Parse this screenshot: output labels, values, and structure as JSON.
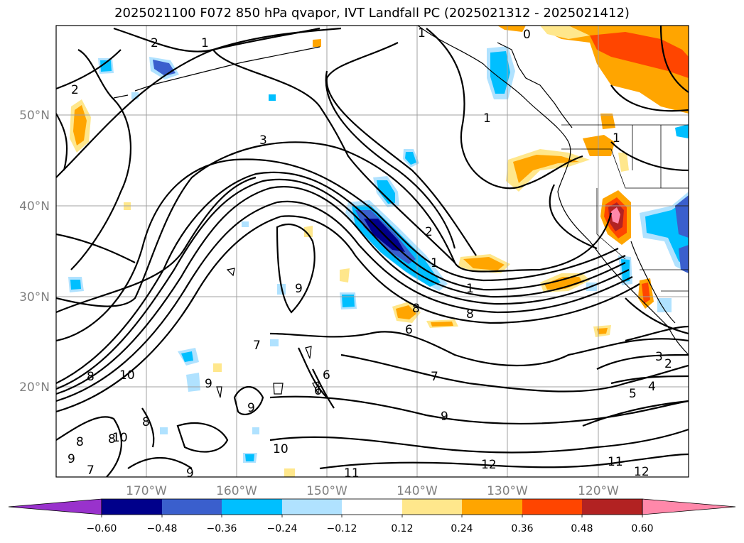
{
  "title": "2025021100 F072 850 hPa qvapor, IVT Landfall PC (2025021312 - 2025021412)",
  "map": {
    "lat_labels": [
      "50°N",
      "40°N",
      "30°N",
      "20°N"
    ],
    "lon_labels": [
      "170°W",
      "160°W",
      "150°W",
      "140°W",
      "130°W",
      "120°W"
    ],
    "contour_labels": [
      "2",
      "1",
      "2",
      "1",
      "0",
      "3",
      "1",
      "2",
      "1",
      "1",
      "9",
      "8",
      "8",
      "8",
      "6",
      "6",
      "6",
      "7",
      "10",
      "8",
      "7",
      "9",
      "9",
      "9",
      "10",
      "8",
      "7",
      "8",
      "10",
      "9",
      "11",
      "12",
      "11",
      "12",
      "5",
      "4",
      "3",
      "2",
      "1",
      "9"
    ]
  },
  "colorbar": {
    "levels": [
      -0.6,
      -0.48,
      -0.36,
      -0.24,
      -0.12,
      0.12,
      0.24,
      0.36,
      0.48,
      0.6
    ],
    "tick_labels": [
      "−0.60",
      "−0.48",
      "−0.36",
      "−0.24",
      "−0.12",
      "0.12",
      "0.24",
      "0.36",
      "0.48",
      "0.60"
    ],
    "colors": [
      "#9932cc",
      "#00008b",
      "#3a5fcd",
      "#00bfff",
      "#b0e2ff",
      "#ffffff",
      "#ffe78c",
      "#ffa500",
      "#ff4500",
      "#b22222",
      "#ff88aa"
    ]
  }
}
